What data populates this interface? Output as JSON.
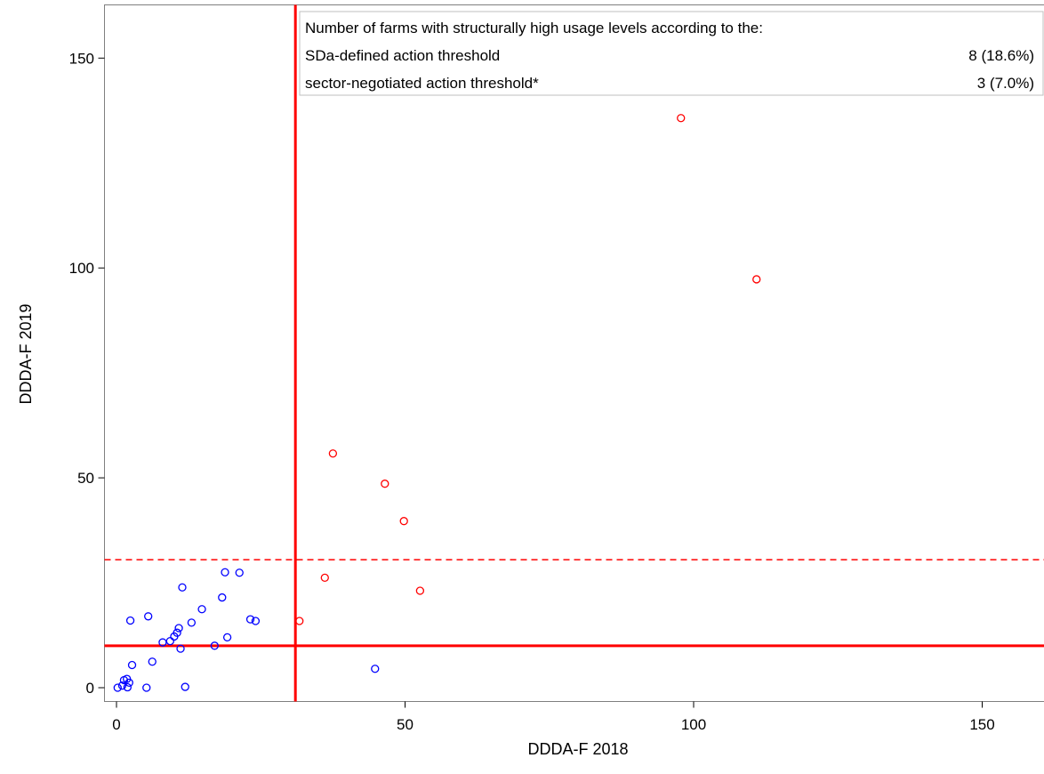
{
  "chart_data": {
    "type": "scatter",
    "xlabel": "DDDA-F 2018",
    "ylabel": "DDDA-F 2019",
    "xlim": [
      -2,
      161
    ],
    "ylim": [
      -3.5,
      162
    ],
    "x_ticks": [
      "0",
      "50",
      "100",
      "150"
    ],
    "y_ticks": [
      "0",
      "50",
      "100",
      "150"
    ],
    "grid": false,
    "colors": {
      "below": "#0000ff",
      "above": "#ff0000",
      "threshold": "#ff0000"
    },
    "thresholds": {
      "vertical_solid_x": 31,
      "horizontal_solid_y": 10,
      "horizontal_dashed_y": 30.5
    },
    "legend_box": {
      "title": "Number of farms with structurally high usage levels according to the:",
      "rows": [
        {
          "label": "SDa-defined action threshold",
          "value": "8 (18.6%)"
        },
        {
          "label": "sector-negotiated action threshold*",
          "value": "3 (7.0%)"
        }
      ]
    },
    "series": [
      {
        "color": "blue",
        "points": [
          [
            0.2,
            0
          ],
          [
            1,
            0.5
          ],
          [
            1.3,
            1.8
          ],
          [
            1.8,
            2.1
          ],
          [
            1.9,
            0.1
          ],
          [
            2.2,
            1.2
          ],
          [
            2.4,
            16
          ],
          [
            2.7,
            5.4
          ],
          [
            5.2,
            0
          ],
          [
            5.5,
            17
          ],
          [
            6.2,
            6.2
          ],
          [
            8,
            10.8
          ],
          [
            9.3,
            11.1
          ],
          [
            10,
            12.2
          ],
          [
            10.5,
            13.1
          ],
          [
            10.8,
            14.2
          ],
          [
            11.1,
            9.3
          ],
          [
            11.4,
            23.9
          ],
          [
            11.9,
            0.2
          ],
          [
            13,
            15.5
          ],
          [
            14.8,
            18.7
          ],
          [
            17,
            10
          ],
          [
            18.3,
            21.5
          ],
          [
            18.8,
            27.5
          ],
          [
            19.2,
            12
          ],
          [
            21.3,
            27.4
          ],
          [
            23.2,
            16.3
          ],
          [
            24.1,
            15.9
          ],
          [
            44.8,
            4.5
          ]
        ]
      },
      {
        "color": "red",
        "points": [
          [
            31.7,
            15.9
          ],
          [
            36.1,
            26.2
          ],
          [
            37.5,
            55.8
          ],
          [
            46.5,
            48.6
          ],
          [
            49.8,
            39.7
          ],
          [
            52.6,
            23.1
          ],
          [
            97.8,
            135.7
          ],
          [
            110.9,
            97.3
          ]
        ]
      }
    ]
  }
}
